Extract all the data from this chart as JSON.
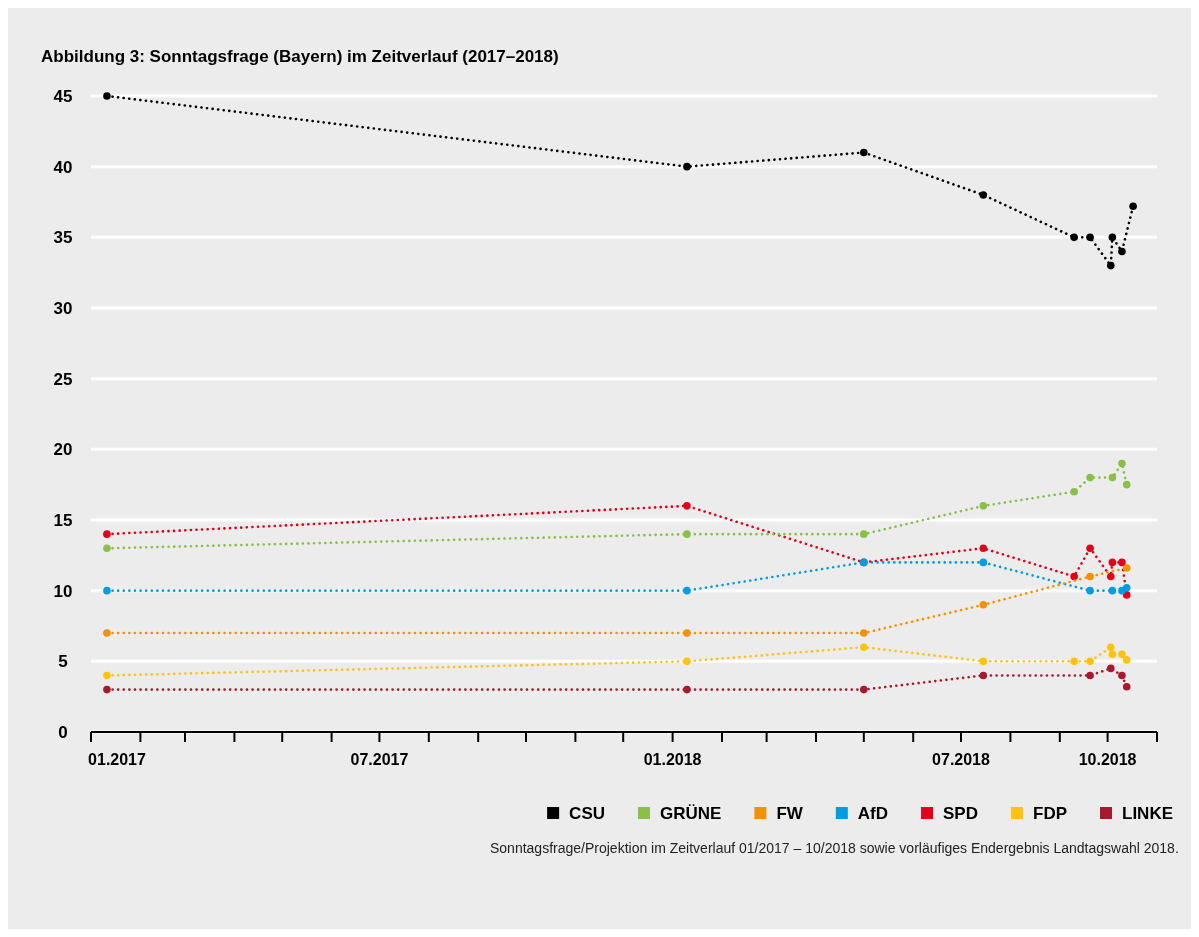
{
  "chart_data": {
    "type": "line",
    "title": "Abbildung 3: Sonntagsfrage (Bayern) im Zeitverlauf (2017–2018)",
    "series": [
      {
        "name": "CSU",
        "color": "#000000",
        "x": [
          "2017-01-11",
          "2018-01-10",
          "2018-05-01",
          "2018-07-15",
          "2018-09-10",
          "2018-09-20",
          "2018-10-03",
          "2018-10-04",
          "2018-10-10",
          "2018-10-17"
        ],
        "values": [
          45,
          40,
          41,
          38,
          35,
          35,
          33,
          35,
          34,
          37.2
        ]
      },
      {
        "name": "GRÜNE",
        "color": "#8cbf4a",
        "x": [
          "2017-01-11",
          "2018-01-10",
          "2018-05-01",
          "2018-07-15",
          "2018-09-10",
          "2018-09-20",
          "2018-10-04",
          "2018-10-10",
          "2018-10-13"
        ],
        "values": [
          13,
          14,
          14,
          16,
          17,
          18,
          18,
          19,
          17.5
        ]
      },
      {
        "name": "FW",
        "color": "#f39200",
        "x": [
          "2017-01-11",
          "2018-01-10",
          "2018-05-01",
          "2018-07-15",
          "2018-09-20",
          "2018-10-13"
        ],
        "values": [
          7,
          7,
          7,
          9,
          11,
          11.6
        ]
      },
      {
        "name": "AfD",
        "color": "#009ee0",
        "x": [
          "2017-01-11",
          "2018-01-10",
          "2018-05-01",
          "2018-07-15",
          "2018-09-20",
          "2018-10-04",
          "2018-10-10",
          "2018-10-13"
        ],
        "values": [
          10,
          10,
          12,
          12,
          10,
          10,
          10,
          10.2
        ]
      },
      {
        "name": "SPD",
        "color": "#e3001b",
        "x": [
          "2017-01-11",
          "2018-01-10",
          "2018-05-01",
          "2018-07-15",
          "2018-09-10",
          "2018-09-20",
          "2018-10-03",
          "2018-10-04",
          "2018-10-10",
          "2018-10-13"
        ],
        "values": [
          14,
          16,
          12,
          13,
          11,
          13,
          11,
          12,
          12,
          9.7
        ]
      },
      {
        "name": "FDP",
        "color": "#ffc20e",
        "x": [
          "2017-01-11",
          "2018-01-10",
          "2018-05-01",
          "2018-07-15",
          "2018-09-10",
          "2018-09-20",
          "2018-10-03",
          "2018-10-04",
          "2018-10-10",
          "2018-10-13"
        ],
        "values": [
          4,
          5,
          6,
          5,
          5,
          5,
          6,
          5.5,
          5.5,
          5.1
        ]
      },
      {
        "name": "LINKE",
        "color": "#a6192e",
        "x": [
          "2017-01-11",
          "2018-01-10",
          "2018-05-01",
          "2018-07-15",
          "2018-09-20",
          "2018-10-03",
          "2018-10-10",
          "2018-10-13"
        ],
        "values": [
          3,
          3,
          3,
          4,
          4,
          4.5,
          4,
          3.2
        ]
      }
    ],
    "xlim": [
      "2017-01-01",
      "2018-11-01"
    ],
    "xticks": [
      {
        "value": "2017-01",
        "label": "01.2017"
      },
      {
        "value": "2017-02",
        "label": null
      },
      {
        "value": "2017-03",
        "label": null
      },
      {
        "value": "2017-04",
        "label": null
      },
      {
        "value": "2017-05",
        "label": null
      },
      {
        "value": "2017-06",
        "label": null
      },
      {
        "value": "2017-07",
        "label": "07.2017"
      },
      {
        "value": "2017-08",
        "label": null
      },
      {
        "value": "2017-09",
        "label": null
      },
      {
        "value": "2017-10",
        "label": null
      },
      {
        "value": "2017-11",
        "label": null
      },
      {
        "value": "2017-12",
        "label": null
      },
      {
        "value": "2018-01",
        "label": "01.2018"
      },
      {
        "value": "2018-02",
        "label": null
      },
      {
        "value": "2018-03",
        "label": null
      },
      {
        "value": "2018-04",
        "label": null
      },
      {
        "value": "2018-05",
        "label": null
      },
      {
        "value": "2018-06",
        "label": null
      },
      {
        "value": "2018-07",
        "label": "07.2018"
      },
      {
        "value": "2018-08",
        "label": null
      },
      {
        "value": "2018-09",
        "label": null
      },
      {
        "value": "2018-10",
        "label": "10.2018"
      },
      {
        "value": "2018-11",
        "label": null
      }
    ],
    "ylim": [
      0,
      45
    ],
    "yticks": [
      0,
      5,
      10,
      15,
      20,
      25,
      30,
      35,
      40,
      45
    ],
    "grid": "y",
    "legend": "bottom right",
    "marker": "circle",
    "line_style": "dotted",
    "annotations": [
      "Sonntagsfrage/Projektion im Zeitverlauf 01/2017 – 10/2018 sowie vorläufiges Endergebnis Landtagswahl 2018."
    ]
  }
}
